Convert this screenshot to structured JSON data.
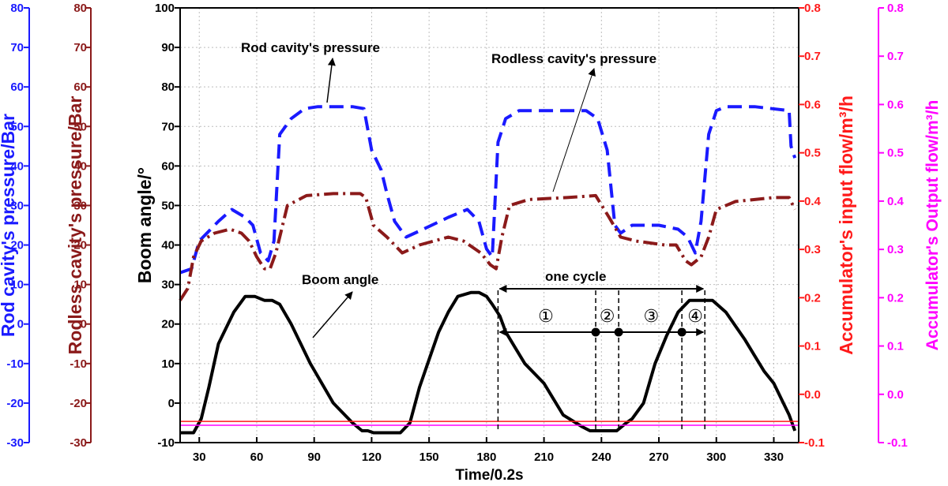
{
  "chart_data": {
    "type": "line",
    "xlabel": "Time/0.2s",
    "xlim": [
      20,
      343
    ],
    "x_ticks": [
      30,
      60,
      90,
      120,
      150,
      180,
      210,
      240,
      270,
      300,
      330
    ],
    "grid": true,
    "axes": [
      {
        "id": "rod",
        "side": "left",
        "label": "Rod cavity's pressure/Bar",
        "color": "#1a1aff",
        "ylim": [
          -30,
          80
        ],
        "ticks": [
          -30,
          -20,
          -10,
          0,
          10,
          20,
          30,
          40,
          50,
          60,
          70,
          80
        ]
      },
      {
        "id": "rodless",
        "side": "left",
        "label": "Rodless cavity's pressure/Bar",
        "color": "#8b1a1a",
        "ylim": [
          -30,
          80
        ],
        "ticks": [
          -30,
          -20,
          -10,
          0,
          10,
          20,
          30,
          40,
          50,
          60,
          70,
          80
        ]
      },
      {
        "id": "boom",
        "side": "left",
        "label": "Boom angle/°",
        "color": "#000000",
        "ylim": [
          -10,
          100
        ],
        "ticks": [
          -10,
          0,
          10,
          20,
          30,
          40,
          50,
          60,
          70,
          80,
          90,
          100
        ]
      },
      {
        "id": "acc_in",
        "side": "right",
        "label": "Accumulator's input flow/m³/h",
        "color": "#ff1a1a",
        "ylim": [
          -0.1,
          0.8
        ],
        "ticks": [
          "-0.1",
          "0.0",
          "0.1",
          "0.2",
          "0.3",
          "0.4",
          "0.5",
          "0.6",
          "0.7",
          "0.8"
        ]
      },
      {
        "id": "acc_out",
        "side": "right",
        "label": "Accumulator's Output flow/m³/h",
        "color": "#ff00ff",
        "ylim": [
          -0.1,
          0.8
        ],
        "ticks": [
          "-0.1",
          "0.0",
          "0.1",
          "0.2",
          "0.3",
          "0.4",
          "0.5",
          "0.6",
          "0.7",
          "0.8"
        ]
      }
    ],
    "series": [
      {
        "name": "Rod cavity's pressure",
        "axis": "boom",
        "color": "#1a1aff",
        "dash": "18,9",
        "x": [
          20,
          26,
          30,
          40,
          47,
          54,
          58,
          62,
          66,
          69,
          72,
          78,
          85,
          92,
          100,
          110,
          116,
          120,
          125,
          128,
          132,
          138,
          147,
          160,
          170,
          176,
          180,
          183,
          186,
          190,
          197,
          215,
          232,
          238,
          243,
          247,
          250,
          256,
          270,
          280,
          285,
          289,
          292,
          296,
          300,
          305,
          320,
          338,
          339,
          341
        ],
        "y": [
          33,
          34,
          41,
          46,
          49,
          47,
          45,
          38,
          36,
          41,
          68,
          72,
          74.5,
          75,
          75,
          75,
          74.5,
          64,
          59,
          53,
          46,
          42,
          44,
          47,
          49,
          46,
          39,
          37,
          66,
          72,
          74,
          74,
          74,
          72,
          64,
          45,
          43,
          45,
          45,
          44,
          42,
          38,
          46,
          68,
          74,
          75,
          75,
          74,
          65,
          62
        ]
      },
      {
        "name": "Rodless cavity's pressure",
        "axis": "boom",
        "color": "#8b1a1a",
        "dash": "18,6,3,6",
        "x": [
          20,
          24,
          27,
          31,
          38,
          46,
          52,
          56,
          60,
          64,
          67,
          70,
          76,
          86,
          100,
          114,
          117,
          121,
          128,
          136,
          145,
          160,
          168,
          177,
          182,
          185,
          188,
          192,
          202,
          222,
          237,
          244,
          250,
          258,
          273,
          279,
          284,
          287,
          292,
          296,
          300,
          310,
          330,
          338,
          341
        ],
        "y": [
          26,
          29,
          37,
          41,
          43,
          44,
          43,
          41,
          37,
          34,
          34,
          38,
          50,
          52.5,
          53,
          53,
          52,
          45,
          42,
          38,
          40,
          42,
          41,
          38,
          35,
          34,
          42,
          50,
          51.5,
          52,
          52.5,
          47,
          42,
          41,
          40,
          40,
          36,
          35,
          37,
          42,
          49,
          51,
          52,
          52,
          49
        ]
      },
      {
        "name": "Boom angle",
        "axis": "boom",
        "color": "#000000",
        "dash": "",
        "x": [
          20,
          27,
          31,
          35,
          40,
          48,
          54,
          57,
          59,
          64,
          68,
          72,
          78,
          88,
          100,
          110,
          115,
          118,
          121,
          130,
          135,
          140,
          145,
          150,
          155,
          160,
          165,
          172,
          176,
          180,
          183,
          187,
          190,
          195,
          200,
          210,
          220,
          230,
          234,
          237,
          248,
          253,
          256,
          262,
          268,
          274,
          280,
          286,
          290,
          294,
          298,
          305,
          315,
          320,
          325,
          330,
          335,
          338,
          341
        ],
        "y": [
          -7.5,
          -7.5,
          -4,
          4,
          15,
          23,
          27,
          27,
          27,
          26,
          26,
          25,
          20,
          10,
          0,
          -5,
          -7,
          -7,
          -7.5,
          -7.5,
          -7.5,
          -5,
          4,
          11,
          18,
          23,
          27,
          28,
          28,
          27,
          25,
          22,
          18,
          14,
          10,
          5,
          -3,
          -6,
          -7,
          -7,
          -7,
          -5,
          -4,
          0,
          10,
          17,
          23,
          26,
          26,
          26,
          26,
          23,
          16,
          12,
          8,
          5,
          0,
          -3,
          -7
        ]
      },
      {
        "name": "Accumulator's input flow",
        "axis": "acc_in",
        "color": "#ff1a1a",
        "dash": "",
        "x": [
          20,
          343
        ],
        "y": [
          -0.056,
          -0.056
        ]
      },
      {
        "name": "Accumulator's Output flow",
        "axis": "acc_out",
        "color": "#ff00ff",
        "dash": "",
        "x": [
          20,
          343
        ],
        "y": [
          -0.064,
          -0.064
        ]
      }
    ],
    "annotations": {
      "rod_label": "Rod cavity's pressure",
      "rodless_label": "Rodless cavity's pressure",
      "boom_label": "Boom angle",
      "cycle_label": "one cycle",
      "phase_labels": [
        "①",
        "②",
        "③",
        "④"
      ]
    },
    "markers": {
      "cycle_bounds": [
        186,
        294
      ],
      "phase_bounds": [
        186,
        237,
        249,
        282,
        294
      ],
      "dots": [
        237,
        249,
        282
      ]
    }
  }
}
